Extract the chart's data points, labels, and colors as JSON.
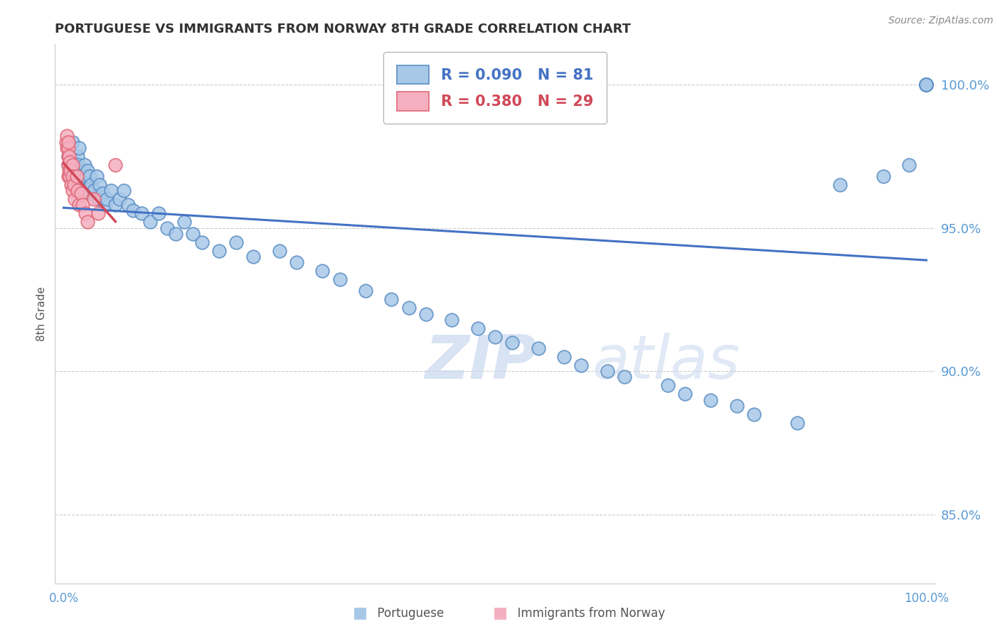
{
  "title": "PORTUGUESE VS IMMIGRANTS FROM NORWAY 8TH GRADE CORRELATION CHART",
  "source": "Source: ZipAtlas.com",
  "ylabel": "8th Grade",
  "blue_label": "Portuguese",
  "pink_label": "Immigrants from Norway",
  "blue_R": 0.09,
  "blue_N": 81,
  "pink_R": 0.38,
  "pink_N": 29,
  "blue_face": "#A8C8E8",
  "blue_edge": "#5B8EC4",
  "pink_face": "#F5B0C0",
  "pink_edge": "#E06878",
  "blue_line_color": "#4472C4",
  "pink_line_color": "#D04858",
  "legend_blue_color": "#4472C4",
  "legend_pink_color": "#D04858",
  "ytick_color": "#5B9BD5",
  "xlabel_color": "#5B9BD5",
  "grid_color": "#CCCCCC",
  "watermark_color": "#C8D8EE",
  "title_color": "#333333",
  "source_color": "#888888",
  "ylabel_color": "#555555",
  "xlim": [
    -0.01,
    1.01
  ],
  "ylim": [
    0.826,
    1.014
  ],
  "yticks": [
    0.85,
    0.9,
    0.95,
    1.0
  ],
  "ytick_labels": [
    "85.0%",
    "90.0%",
    "95.0%",
    "100.0%"
  ],
  "blue_x": [
    0.005,
    0.005,
    0.005,
    0.007,
    0.008,
    0.009,
    0.01,
    0.01,
    0.012,
    0.015,
    0.015,
    0.016,
    0.017,
    0.018,
    0.02,
    0.02,
    0.022,
    0.024,
    0.025,
    0.026,
    0.028,
    0.03,
    0.03,
    0.032,
    0.035,
    0.038,
    0.04,
    0.042,
    0.045,
    0.048,
    0.05,
    0.055,
    0.06,
    0.065,
    0.07,
    0.075,
    0.08,
    0.09,
    0.1,
    0.11,
    0.12,
    0.13,
    0.14,
    0.15,
    0.16,
    0.18,
    0.2,
    0.22,
    0.25,
    0.27,
    0.3,
    0.32,
    0.35,
    0.38,
    0.4,
    0.42,
    0.45,
    0.48,
    0.5,
    0.52,
    0.55,
    0.58,
    0.6,
    0.63,
    0.65,
    0.7,
    0.72,
    0.75,
    0.78,
    0.8,
    0.85,
    0.9,
    0.95,
    0.98,
    1.0,
    1.0,
    1.0,
    1.0,
    1.0,
    1.0,
    1.0
  ],
  "blue_y": [
    0.975,
    0.972,
    0.978,
    0.97,
    0.968,
    0.975,
    0.965,
    0.98,
    0.972,
    0.97,
    0.968,
    0.975,
    0.972,
    0.978,
    0.965,
    0.97,
    0.968,
    0.972,
    0.965,
    0.968,
    0.97,
    0.962,
    0.968,
    0.965,
    0.963,
    0.968,
    0.96,
    0.965,
    0.962,
    0.958,
    0.96,
    0.963,
    0.958,
    0.96,
    0.963,
    0.958,
    0.956,
    0.955,
    0.952,
    0.955,
    0.95,
    0.948,
    0.952,
    0.948,
    0.945,
    0.942,
    0.945,
    0.94,
    0.942,
    0.938,
    0.935,
    0.932,
    0.928,
    0.925,
    0.922,
    0.92,
    0.918,
    0.915,
    0.912,
    0.91,
    0.908,
    0.905,
    0.902,
    0.9,
    0.898,
    0.895,
    0.892,
    0.89,
    0.888,
    0.885,
    0.882,
    0.965,
    0.968,
    0.972,
    1.0,
    1.0,
    1.0,
    1.0,
    1.0,
    1.0,
    1.0
  ],
  "pink_x": [
    0.003,
    0.004,
    0.004,
    0.005,
    0.005,
    0.005,
    0.005,
    0.005,
    0.006,
    0.006,
    0.007,
    0.007,
    0.008,
    0.009,
    0.01,
    0.01,
    0.01,
    0.012,
    0.013,
    0.015,
    0.016,
    0.018,
    0.02,
    0.022,
    0.025,
    0.028,
    0.035,
    0.04,
    0.06
  ],
  "pink_y": [
    0.98,
    0.978,
    0.982,
    0.975,
    0.978,
    0.972,
    0.98,
    0.968,
    0.975,
    0.97,
    0.973,
    0.968,
    0.97,
    0.965,
    0.972,
    0.968,
    0.963,
    0.965,
    0.96,
    0.968,
    0.963,
    0.958,
    0.962,
    0.958,
    0.955,
    0.952,
    0.96,
    0.955,
    0.972
  ]
}
